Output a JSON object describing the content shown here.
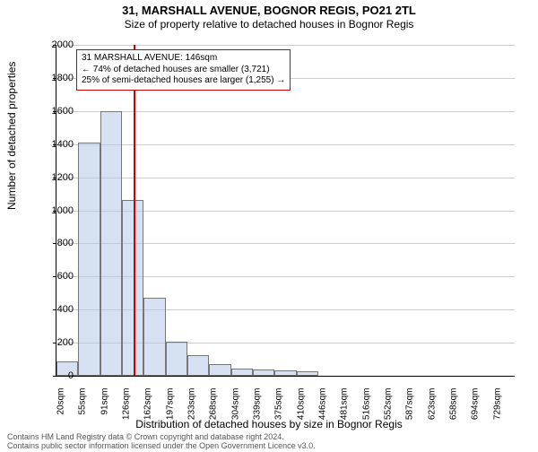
{
  "title_main": "31, MARSHALL AVENUE, BOGNOR REGIS, PO21 2TL",
  "title_sub": "Size of property relative to detached houses in Bognor Regis",
  "ylabel": "Number of detached properties",
  "xlabel": "Distribution of detached houses by size in Bognor Regis",
  "footnote1": "Contains HM Land Registry data © Crown copyright and database right 2024.",
  "footnote2": "Contains public sector information licensed under the Open Government Licence v3.0.",
  "annotation": {
    "line1": "31 MARSHALL AVENUE: 146sqm",
    "line2": "← 74% of detached houses are smaller (3,721)",
    "line3": "25% of semi-detached houses are larger (1,255) →"
  },
  "chart": {
    "type": "histogram",
    "ylim": [
      0,
      2000
    ],
    "ytick_step": 200,
    "background_color": "#ffffff",
    "grid_color": "#cccccc",
    "bar_fill": "rgba(180,200,230,0.55)",
    "bar_border": "#777777",
    "marker_color": "#cc0000",
    "marker_value": 146,
    "x_start": 20,
    "bin_width": 35.5,
    "bins": 21,
    "xticks": [
      "20sqm",
      "55sqm",
      "91sqm",
      "126sqm",
      "162sqm",
      "197sqm",
      "233sqm",
      "268sqm",
      "304sqm",
      "339sqm",
      "375sqm",
      "410sqm",
      "446sqm",
      "481sqm",
      "516sqm",
      "552sqm",
      "587sqm",
      "623sqm",
      "658sqm",
      "694sqm",
      "729sqm"
    ],
    "values": [
      85,
      1410,
      1600,
      1060,
      470,
      205,
      125,
      70,
      45,
      40,
      30,
      25,
      0,
      0,
      0,
      0,
      0,
      0,
      0,
      0,
      0
    ],
    "title_fontsize": 13,
    "label_fontsize": 12,
    "tick_fontsize": 11
  }
}
